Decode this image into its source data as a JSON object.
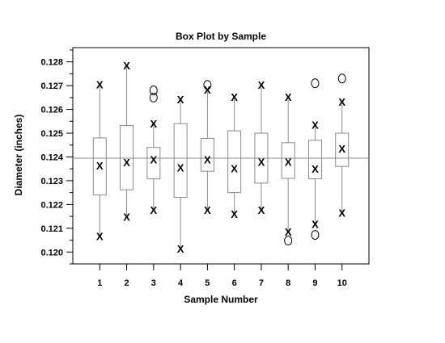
{
  "chart_data": {
    "type": "box",
    "title": "Box Plot by Sample",
    "xlabel": "Sample Number",
    "ylabel": "Diameter (inches)",
    "x_categories": [
      "1",
      "2",
      "3",
      "4",
      "5",
      "6",
      "7",
      "8",
      "9",
      "10"
    ],
    "xlim": [
      0,
      11
    ],
    "ylim": [
      0.1195,
      0.1286
    ],
    "y_ticks": [
      "0.120",
      "0.121",
      "0.122",
      "0.123",
      "0.124",
      "0.125",
      "0.126",
      "0.127",
      "0.128"
    ],
    "reference_line": 0.12395,
    "outlier_marker": "O",
    "point_marker": "X",
    "boxes": [
      {
        "x": "1",
        "min": 0.12067,
        "q1": 0.1224,
        "median": 0.12365,
        "q3": 0.1248,
        "max": 0.12705,
        "outliers": []
      },
      {
        "x": "2",
        "min": 0.12148,
        "q1": 0.12262,
        "median": 0.12378,
        "q3": 0.12532,
        "max": 0.12785,
        "outliers": []
      },
      {
        "x": "3",
        "min": 0.12178,
        "q1": 0.12308,
        "median": 0.1239,
        "q3": 0.1244,
        "max": 0.1254,
        "outliers": [
          0.1265,
          0.1268
        ]
      },
      {
        "x": "4",
        "min": 0.12015,
        "q1": 0.1223,
        "median": 0.12355,
        "q3": 0.1254,
        "max": 0.12643,
        "outliers": []
      },
      {
        "x": "5",
        "min": 0.12178,
        "q1": 0.1234,
        "median": 0.1239,
        "q3": 0.12478,
        "max": 0.12683,
        "outliers": [
          0.12703
        ]
      },
      {
        "x": "6",
        "min": 0.1216,
        "q1": 0.1225,
        "median": 0.12353,
        "q3": 0.1251,
        "max": 0.12653,
        "outliers": []
      },
      {
        "x": "7",
        "min": 0.12178,
        "q1": 0.1229,
        "median": 0.1238,
        "q3": 0.125,
        "max": 0.12703,
        "outliers": []
      },
      {
        "x": "8",
        "min": 0.12085,
        "q1": 0.1231,
        "median": 0.1238,
        "q3": 0.1246,
        "max": 0.12653,
        "outliers": [
          0.12048
        ]
      },
      {
        "x": "9",
        "min": 0.12118,
        "q1": 0.12308,
        "median": 0.1235,
        "q3": 0.1247,
        "max": 0.12535,
        "outliers": [
          0.12072,
          0.1271
        ]
      },
      {
        "x": "10",
        "min": 0.12165,
        "q1": 0.1236,
        "median": 0.12435,
        "q3": 0.125,
        "max": 0.12633,
        "outliers": [
          0.1273
        ]
      }
    ]
  }
}
